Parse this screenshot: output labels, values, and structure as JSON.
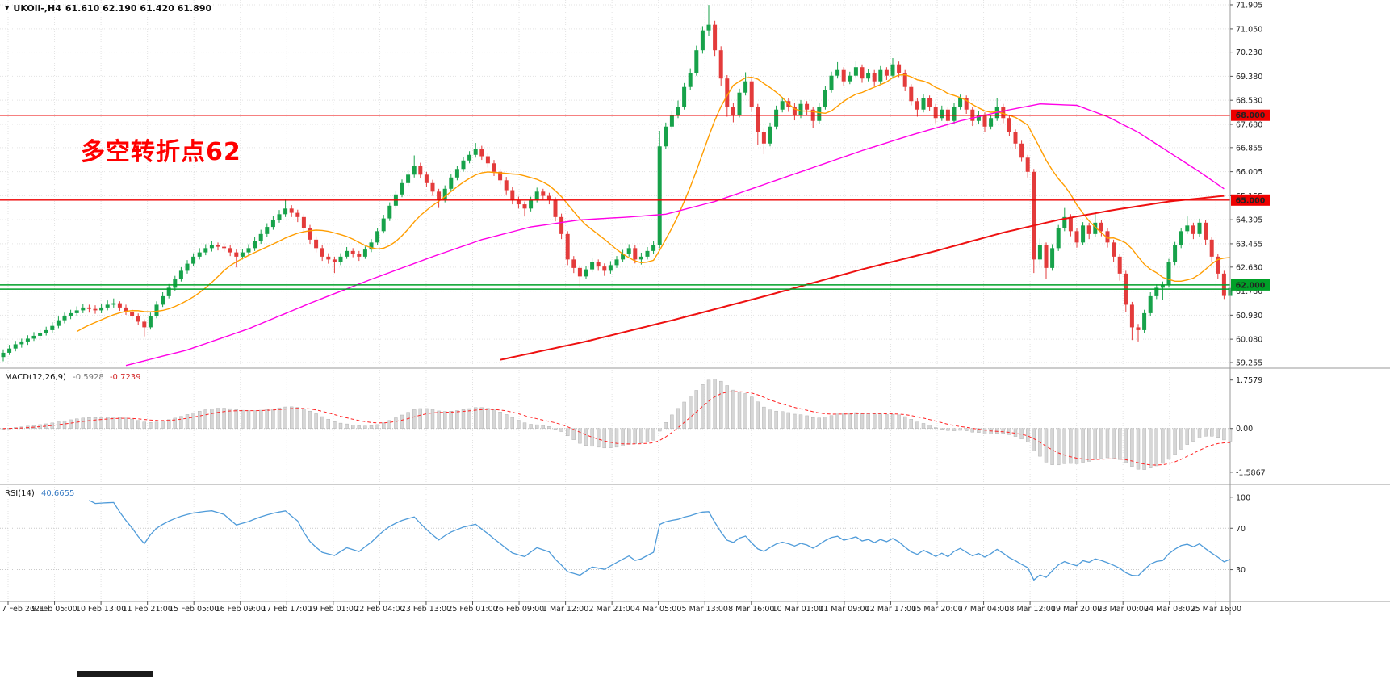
{
  "window": {
    "collapse_icon": "▼",
    "symbol": "UKOil-,H4",
    "ohlc": "61.610 62.190 61.420 61.890"
  },
  "annotation": {
    "text": "多空转折点62",
    "color": "#ff0000"
  },
  "indicators": {
    "macd": {
      "label": "MACD(12,26,9)",
      "main_value": "-0.5928",
      "signal_value": "-0.7239",
      "axis_labels": [
        "1.7579",
        "0.00",
        "-1.5867"
      ]
    },
    "rsi": {
      "label": "RSI(14)",
      "value": "40.6655",
      "axis_labels": [
        "100",
        "70",
        "30"
      ],
      "levels": [
        70,
        30
      ]
    }
  },
  "theme": {
    "up": "#17a24a",
    "down": "#e33b3b",
    "ma_fast": "#ff9d00",
    "ma_mid": "#ff00e6",
    "ma_slow": "#ee1111",
    "macd_hist": "#d6d6d6",
    "macd_hist_stroke": "#a8a8a8",
    "macd_signal": "#ff2222",
    "rsi": "#4f9bd9",
    "grid": "#e3e3e3",
    "sep": "#9a9a9a",
    "text": "#222222"
  },
  "chart_data": {
    "type": "candlestick",
    "symbol": "UKOil",
    "timeframe": "H4",
    "current_bar": {
      "open": 61.61,
      "high": 62.19,
      "low": 61.42,
      "close": 61.89
    },
    "price_axis": {
      "max": 71.99,
      "min": 59.17,
      "labels": [
        "71.905",
        "71.050",
        "70.230",
        "69.380",
        "68.530",
        "67.680",
        "66.855",
        "66.005",
        "65.155",
        "64.305",
        "63.455",
        "62.630",
        "61.780",
        "60.930",
        "60.080",
        "59.255"
      ]
    },
    "time_labels": [
      "7 Feb 2021",
      "9 Feb 05:00",
      "10 Feb 13:00",
      "11 Feb 21:00",
      "15 Feb 05:00",
      "16 Feb 09:00",
      "17 Feb 17:00",
      "19 Feb 01:00",
      "22 Feb 04:00",
      "23 Feb 13:00",
      "25 Feb 01:00",
      "26 Feb 09:00",
      "1 Mar 12:00",
      "2 Mar 21:00",
      "4 Mar 05:00",
      "5 Mar 13:00",
      "8 Mar 16:00",
      "10 Mar 01:00",
      "11 Mar 09:00",
      "12 Mar 17:00",
      "15 Mar 20:00",
      "17 Mar 04:00",
      "18 Mar 12:00",
      "19 Mar 20:00",
      "23 Mar 00:00",
      "24 Mar 08:00",
      "25 Mar 16:00"
    ],
    "horizontal_levels": [
      {
        "price": 68.0,
        "label": "68.000",
        "color": "#ee0000",
        "tagged": true
      },
      {
        "price": 65.0,
        "label": "65.000",
        "color": "#ee0000",
        "tagged": true
      },
      {
        "price": 62.0,
        "label": "62.000",
        "color": "#00a028",
        "tagged": true
      },
      {
        "price": 61.85,
        "label": "",
        "color": "#00a028",
        "tagged": false
      }
    ],
    "moving_averages": {
      "fast": {
        "type": "sma",
        "period": 13
      },
      "medium": {
        "points": [
          [
            20,
            59.15
          ],
          [
            30,
            59.7
          ],
          [
            40,
            60.45
          ],
          [
            50,
            61.35
          ],
          [
            60,
            62.2
          ],
          [
            70,
            63.0
          ],
          [
            78,
            63.6
          ],
          [
            86,
            64.05
          ],
          [
            94,
            64.3
          ],
          [
            102,
            64.4
          ],
          [
            108,
            64.5
          ],
          [
            116,
            64.95
          ],
          [
            124,
            65.55
          ],
          [
            132,
            66.15
          ],
          [
            140,
            66.75
          ],
          [
            148,
            67.3
          ],
          [
            156,
            67.8
          ],
          [
            163,
            68.15
          ],
          [
            169,
            68.4
          ],
          [
            175,
            68.35
          ],
          [
            180,
            67.95
          ],
          [
            185,
            67.4
          ],
          [
            190,
            66.7
          ],
          [
            195,
            66.0
          ],
          [
            199,
            65.4
          ]
        ]
      },
      "slow": {
        "points": [
          [
            81,
            59.35
          ],
          [
            95,
            60.0
          ],
          [
            110,
            60.8
          ],
          [
            125,
            61.65
          ],
          [
            140,
            62.55
          ],
          [
            152,
            63.2
          ],
          [
            163,
            63.85
          ],
          [
            172,
            64.3
          ],
          [
            181,
            64.65
          ],
          [
            190,
            64.95
          ],
          [
            199,
            65.15
          ]
        ]
      }
    },
    "macd_settings": [
      12,
      26,
      9
    ],
    "rsi_period": 14,
    "candles": [
      [
        59.45,
        59.72,
        59.3,
        59.6
      ],
      [
        59.6,
        59.88,
        59.52,
        59.75
      ],
      [
        59.75,
        60.02,
        59.65,
        59.9
      ],
      [
        59.9,
        60.1,
        59.78,
        60.0
      ],
      [
        60.0,
        60.22,
        59.88,
        60.1
      ],
      [
        60.1,
        60.33,
        60.02,
        60.2
      ],
      [
        60.2,
        60.41,
        60.08,
        60.3
      ],
      [
        60.3,
        60.52,
        60.21,
        60.4
      ],
      [
        60.4,
        60.68,
        60.3,
        60.55
      ],
      [
        60.55,
        60.88,
        60.47,
        60.75
      ],
      [
        60.75,
        61.02,
        60.64,
        60.9
      ],
      [
        60.9,
        61.12,
        60.79,
        61.0
      ],
      [
        61.0,
        61.24,
        60.9,
        61.1
      ],
      [
        61.1,
        61.33,
        61.0,
        61.2
      ],
      [
        61.2,
        61.3,
        61.02,
        61.15
      ],
      [
        61.15,
        61.28,
        60.98,
        61.1
      ],
      [
        61.1,
        61.33,
        61.0,
        61.2
      ],
      [
        61.2,
        61.45,
        61.1,
        61.3
      ],
      [
        61.3,
        61.52,
        61.2,
        61.35
      ],
      [
        61.35,
        61.42,
        61.08,
        61.2
      ],
      [
        61.2,
        61.3,
        60.94,
        61.05
      ],
      [
        61.05,
        61.14,
        60.78,
        60.9
      ],
      [
        60.9,
        60.99,
        60.58,
        60.7
      ],
      [
        60.7,
        60.78,
        60.18,
        60.5
      ],
      [
        60.5,
        61.02,
        60.42,
        60.9
      ],
      [
        60.9,
        61.42,
        60.82,
        61.3
      ],
      [
        61.3,
        61.74,
        61.22,
        61.6
      ],
      [
        61.6,
        62.03,
        61.52,
        61.9
      ],
      [
        61.9,
        62.32,
        61.8,
        62.2
      ],
      [
        62.2,
        62.63,
        62.12,
        62.5
      ],
      [
        62.5,
        62.88,
        62.4,
        62.75
      ],
      [
        62.75,
        63.12,
        62.66,
        63.0
      ],
      [
        63.0,
        63.3,
        62.9,
        63.15
      ],
      [
        63.15,
        63.44,
        63.05,
        63.3
      ],
      [
        63.3,
        63.55,
        63.18,
        63.4
      ],
      [
        63.4,
        63.5,
        63.22,
        63.35
      ],
      [
        63.35,
        63.46,
        63.18,
        63.3
      ],
      [
        63.3,
        63.4,
        63.02,
        63.15
      ],
      [
        63.15,
        63.25,
        62.62,
        63.0
      ],
      [
        63.0,
        63.28,
        62.9,
        63.15
      ],
      [
        63.15,
        63.44,
        63.05,
        63.3
      ],
      [
        63.3,
        63.7,
        63.2,
        63.55
      ],
      [
        63.55,
        63.95,
        63.45,
        63.8
      ],
      [
        63.8,
        64.18,
        63.7,
        64.05
      ],
      [
        64.05,
        64.45,
        63.95,
        64.3
      ],
      [
        64.3,
        64.65,
        64.2,
        64.5
      ],
      [
        64.5,
        65.05,
        64.4,
        64.7
      ],
      [
        64.7,
        64.82,
        64.4,
        64.55
      ],
      [
        64.55,
        64.66,
        64.22,
        64.4
      ],
      [
        64.4,
        64.5,
        63.85,
        64.0
      ],
      [
        64.0,
        64.12,
        63.45,
        63.6
      ],
      [
        63.6,
        63.72,
        63.15,
        63.3
      ],
      [
        63.3,
        63.42,
        62.85,
        63.0
      ],
      [
        63.0,
        63.12,
        62.75,
        62.9
      ],
      [
        62.9,
        63.0,
        62.42,
        62.8
      ],
      [
        62.8,
        63.12,
        62.7,
        63.0
      ],
      [
        63.0,
        63.34,
        62.92,
        63.2
      ],
      [
        63.2,
        63.3,
        62.98,
        63.1
      ],
      [
        63.1,
        63.2,
        62.85,
        63.0
      ],
      [
        63.0,
        63.36,
        62.92,
        63.25
      ],
      [
        63.25,
        63.62,
        63.16,
        63.5
      ],
      [
        63.5,
        64.02,
        63.42,
        63.9
      ],
      [
        63.9,
        64.48,
        63.82,
        64.35
      ],
      [
        64.35,
        64.92,
        64.26,
        64.8
      ],
      [
        64.8,
        65.33,
        64.7,
        65.2
      ],
      [
        65.2,
        65.73,
        65.1,
        65.6
      ],
      [
        65.6,
        66.05,
        65.5,
        65.9
      ],
      [
        65.9,
        66.58,
        65.8,
        66.2
      ],
      [
        66.2,
        66.32,
        65.78,
        65.9
      ],
      [
        65.9,
        66.0,
        65.46,
        65.6
      ],
      [
        65.6,
        65.72,
        65.15,
        65.3
      ],
      [
        65.3,
        65.4,
        64.72,
        65.0
      ],
      [
        65.0,
        65.52,
        64.92,
        65.4
      ],
      [
        65.4,
        65.92,
        65.3,
        65.8
      ],
      [
        65.8,
        66.22,
        65.7,
        66.1
      ],
      [
        66.1,
        66.52,
        66.0,
        66.4
      ],
      [
        66.4,
        66.73,
        66.3,
        66.6
      ],
      [
        66.6,
        67.02,
        66.5,
        66.8
      ],
      [
        66.8,
        66.92,
        66.42,
        66.55
      ],
      [
        66.55,
        66.66,
        66.15,
        66.3
      ],
      [
        66.3,
        66.42,
        65.85,
        66.0
      ],
      [
        66.0,
        66.1,
        65.55,
        65.7
      ],
      [
        65.7,
        65.82,
        65.2,
        65.35
      ],
      [
        65.35,
        65.46,
        64.85,
        65.0
      ],
      [
        65.0,
        65.12,
        64.7,
        64.85
      ],
      [
        64.85,
        64.95,
        64.42,
        64.7
      ],
      [
        64.7,
        65.12,
        64.6,
        65.0
      ],
      [
        65.0,
        65.44,
        64.92,
        65.3
      ],
      [
        65.3,
        65.4,
        65.0,
        65.15
      ],
      [
        65.15,
        65.26,
        64.85,
        65.0
      ],
      [
        65.0,
        65.1,
        64.25,
        64.4
      ],
      [
        64.4,
        64.52,
        63.62,
        63.8
      ],
      [
        63.8,
        63.9,
        62.7,
        62.9
      ],
      [
        62.9,
        63.02,
        62.42,
        62.6
      ],
      [
        62.6,
        62.7,
        61.92,
        62.3
      ],
      [
        62.3,
        62.68,
        62.2,
        62.55
      ],
      [
        62.55,
        62.94,
        62.45,
        62.8
      ],
      [
        62.8,
        62.9,
        62.5,
        62.65
      ],
      [
        62.65,
        62.76,
        62.32,
        62.5
      ],
      [
        62.5,
        62.84,
        62.4,
        62.7
      ],
      [
        62.7,
        63.02,
        62.6,
        62.9
      ],
      [
        62.9,
        63.24,
        62.82,
        63.1
      ],
      [
        63.1,
        63.44,
        63.0,
        63.3
      ],
      [
        63.3,
        63.4,
        62.76,
        62.9
      ],
      [
        62.9,
        63.14,
        62.72,
        63.0
      ],
      [
        63.0,
        63.34,
        62.9,
        63.2
      ],
      [
        63.2,
        63.54,
        63.1,
        63.4
      ],
      [
        63.4,
        67.45,
        63.3,
        66.9
      ],
      [
        66.9,
        67.74,
        66.8,
        67.6
      ],
      [
        67.6,
        68.15,
        67.5,
        68.0
      ],
      [
        68.0,
        68.52,
        67.9,
        68.3
      ],
      [
        68.3,
        69.14,
        68.2,
        69.0
      ],
      [
        69.0,
        69.66,
        68.9,
        69.5
      ],
      [
        69.5,
        70.46,
        69.4,
        70.3
      ],
      [
        70.3,
        71.15,
        70.18,
        71.0
      ],
      [
        71.0,
        71.9,
        70.8,
        71.2
      ],
      [
        71.2,
        71.34,
        70.1,
        70.3
      ],
      [
        70.3,
        70.44,
        69.05,
        69.3
      ],
      [
        69.3,
        69.42,
        67.95,
        68.3
      ],
      [
        68.3,
        68.44,
        67.75,
        68.0
      ],
      [
        68.0,
        68.94,
        67.92,
        68.8
      ],
      [
        68.8,
        69.52,
        68.7,
        69.2
      ],
      [
        69.2,
        69.3,
        68.12,
        68.3
      ],
      [
        68.3,
        68.4,
        66.95,
        67.4
      ],
      [
        67.4,
        67.52,
        66.62,
        67.0
      ],
      [
        67.0,
        67.74,
        66.9,
        67.6
      ],
      [
        67.6,
        68.34,
        67.5,
        68.2
      ],
      [
        68.2,
        68.64,
        68.1,
        68.5
      ],
      [
        68.5,
        68.6,
        68.12,
        68.3
      ],
      [
        68.3,
        68.42,
        67.82,
        68.0
      ],
      [
        68.0,
        68.54,
        67.9,
        68.4
      ],
      [
        68.4,
        68.5,
        68.02,
        68.2
      ],
      [
        68.2,
        68.3,
        67.55,
        67.8
      ],
      [
        67.8,
        68.44,
        67.7,
        68.3
      ],
      [
        68.3,
        69.02,
        68.2,
        68.9
      ],
      [
        68.9,
        69.54,
        68.8,
        69.4
      ],
      [
        69.4,
        69.88,
        69.3,
        69.6
      ],
      [
        69.6,
        69.7,
        69.05,
        69.2
      ],
      [
        69.2,
        69.54,
        69.1,
        69.4
      ],
      [
        69.4,
        69.92,
        69.3,
        69.7
      ],
      [
        69.7,
        69.8,
        69.15,
        69.3
      ],
      [
        69.3,
        69.64,
        69.2,
        69.5
      ],
      [
        69.5,
        69.6,
        69.05,
        69.2
      ],
      [
        69.2,
        69.74,
        69.1,
        69.6
      ],
      [
        69.6,
        69.7,
        69.25,
        69.4
      ],
      [
        69.4,
        70.02,
        69.3,
        69.8
      ],
      [
        69.8,
        69.9,
        69.35,
        69.5
      ],
      [
        69.5,
        69.6,
        68.85,
        69.0
      ],
      [
        69.0,
        69.1,
        68.35,
        68.5
      ],
      [
        68.5,
        68.6,
        67.95,
        68.2
      ],
      [
        68.2,
        68.74,
        68.1,
        68.6
      ],
      [
        68.6,
        68.7,
        68.15,
        68.3
      ],
      [
        68.3,
        68.4,
        67.72,
        67.9
      ],
      [
        67.9,
        68.34,
        67.8,
        68.2
      ],
      [
        68.2,
        68.3,
        67.55,
        67.8
      ],
      [
        67.8,
        68.44,
        67.7,
        68.3
      ],
      [
        68.3,
        68.73,
        68.2,
        68.6
      ],
      [
        68.6,
        68.7,
        68.05,
        68.2
      ],
      [
        68.2,
        68.3,
        67.62,
        67.8
      ],
      [
        67.8,
        68.14,
        67.7,
        68.0
      ],
      [
        68.0,
        68.1,
        67.42,
        67.6
      ],
      [
        67.6,
        68.02,
        67.5,
        67.9
      ],
      [
        67.9,
        68.62,
        67.8,
        68.3
      ],
      [
        68.3,
        68.4,
        67.72,
        67.9
      ],
      [
        67.9,
        68.0,
        67.25,
        67.4
      ],
      [
        67.4,
        67.5,
        66.82,
        67.0
      ],
      [
        67.0,
        67.1,
        66.35,
        66.5
      ],
      [
        66.5,
        66.6,
        65.8,
        66.0
      ],
      [
        66.0,
        66.1,
        62.42,
        62.9
      ],
      [
        62.9,
        63.64,
        62.7,
        63.4
      ],
      [
        63.4,
        63.5,
        62.2,
        62.6
      ],
      [
        62.6,
        63.44,
        62.5,
        63.3
      ],
      [
        63.3,
        64.12,
        63.2,
        64.0
      ],
      [
        64.0,
        64.72,
        63.9,
        64.4
      ],
      [
        64.4,
        64.5,
        63.72,
        63.9
      ],
      [
        63.9,
        64.0,
        63.32,
        63.5
      ],
      [
        63.5,
        64.22,
        63.4,
        64.1
      ],
      [
        64.1,
        64.2,
        63.62,
        63.8
      ],
      [
        63.8,
        64.52,
        63.7,
        64.2
      ],
      [
        64.2,
        64.3,
        63.72,
        63.9
      ],
      [
        63.9,
        64.0,
        63.32,
        63.5
      ],
      [
        63.5,
        63.6,
        62.8,
        63.0
      ],
      [
        63.0,
        63.1,
        62.15,
        62.4
      ],
      [
        62.4,
        62.5,
        61.05,
        61.3
      ],
      [
        61.3,
        61.4,
        60.05,
        60.5
      ],
      [
        60.5,
        60.62,
        60.0,
        60.4
      ],
      [
        60.4,
        61.12,
        60.3,
        61.0
      ],
      [
        61.0,
        61.74,
        60.9,
        61.6
      ],
      [
        61.6,
        62.02,
        61.5,
        61.9
      ],
      [
        61.9,
        62.12,
        61.48,
        62.0
      ],
      [
        62.0,
        62.92,
        61.9,
        62.8
      ],
      [
        62.8,
        63.52,
        62.7,
        63.4
      ],
      [
        63.4,
        64.02,
        63.3,
        63.9
      ],
      [
        63.9,
        64.42,
        63.8,
        64.1
      ],
      [
        64.1,
        64.2,
        63.62,
        63.8
      ],
      [
        63.8,
        64.34,
        63.7,
        64.2
      ],
      [
        64.2,
        64.3,
        63.42,
        63.6
      ],
      [
        63.6,
        63.7,
        62.82,
        63.0
      ],
      [
        63.0,
        63.1,
        62.22,
        62.4
      ],
      [
        62.4,
        62.5,
        61.5,
        61.61
      ],
      [
        61.61,
        62.19,
        61.42,
        61.89
      ]
    ]
  }
}
